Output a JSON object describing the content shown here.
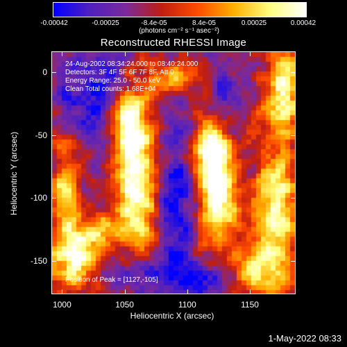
{
  "colorbar": {
    "ticks": [
      "-0.00042",
      "-0.00025",
      "-8.4e-05",
      "8.4e-05",
      "0.00025",
      "0.00042"
    ],
    "unit": "(photons cm⁻² s⁻¹ asec⁻²)",
    "colormap": [
      "#0000ff",
      "#5020c0",
      "#7a2a9c",
      "#c01e10",
      "#ff4c00",
      "#ffb000",
      "#ffff80",
      "#ffffff"
    ]
  },
  "plot": {
    "info_lines": [
      "24-Aug-2002 08:34:24.000 to 08:40:24.000",
      "Detectors: 3F 4F 5F 6F 7F 8F, Att 0",
      "Energy Range: 25.0 - 50.0 keV",
      "Clean    Total counts: 1.68E+04"
    ],
    "peak_text": "Position of Peak = [1127,-105]"
  },
  "footer": {
    "timestamp": "1-May-2022 08:33"
  },
  "chart_data": {
    "type": "heatmap",
    "title": "Reconstructed RHESSI Image",
    "xlabel": "Heliocentric X (arcsec)",
    "ylabel": "Heliocentric Y (arcsec)",
    "xlim": [
      992,
      1186
    ],
    "ylim": [
      -176,
      16
    ],
    "x_ticks": [
      1000,
      1050,
      1100,
      1150
    ],
    "y_ticks": [
      0,
      -50,
      -100,
      -150
    ],
    "value_range": [
      -0.00042,
      0.00042
    ],
    "peak": [
      1127,
      -105
    ],
    "bright_regions": [
      {
        "x": 1060,
        "y": -88,
        "sx": 12,
        "sy": 45,
        "amp": 1.0
      },
      {
        "x": 1052,
        "y": -40,
        "sx": 8,
        "sy": 18,
        "amp": 0.75
      },
      {
        "x": 1125,
        "y": -100,
        "sx": 11,
        "sy": 30,
        "amp": 1.0
      },
      {
        "x": 1118,
        "y": -60,
        "sx": 10,
        "sy": 18,
        "amp": 0.85
      },
      {
        "x": 1010,
        "y": -145,
        "sx": 14,
        "sy": 18,
        "amp": 0.9
      },
      {
        "x": 1003,
        "y": -90,
        "sx": 8,
        "sy": 30,
        "amp": 0.7
      },
      {
        "x": 1170,
        "y": -110,
        "sx": 12,
        "sy": 60,
        "amp": 0.85
      },
      {
        "x": 1178,
        "y": -10,
        "sx": 8,
        "sy": 22,
        "amp": 0.75
      },
      {
        "x": 1090,
        "y": -5,
        "sx": 14,
        "sy": 10,
        "amp": 0.55
      },
      {
        "x": 1150,
        "y": -155,
        "sx": 10,
        "sy": 12,
        "amp": 0.6
      },
      {
        "x": 1032,
        "y": -125,
        "sx": 8,
        "sy": 10,
        "amp": 0.55
      }
    ],
    "dark_regions": [
      {
        "x": 1022,
        "y": -20,
        "sx": 16,
        "sy": 26,
        "amp": 0.8
      },
      {
        "x": 1092,
        "y": -95,
        "sx": 10,
        "sy": 40,
        "amp": 0.85
      },
      {
        "x": 1070,
        "y": -160,
        "sx": 22,
        "sy": 12,
        "amp": 0.9
      },
      {
        "x": 1128,
        "y": -20,
        "sx": 8,
        "sy": 12,
        "amp": 0.7
      },
      {
        "x": 1108,
        "y": -165,
        "sx": 14,
        "sy": 10,
        "amp": 0.8
      },
      {
        "x": 1168,
        "y": -65,
        "sx": 6,
        "sy": 10,
        "amp": 0.7
      }
    ]
  }
}
